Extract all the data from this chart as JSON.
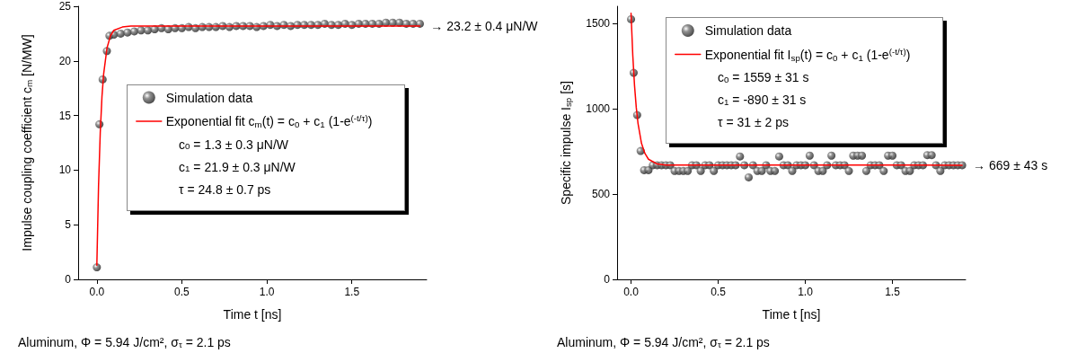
{
  "chart_data": [
    {
      "type": "scatter",
      "xlabel": "Time t [ns]",
      "ylabel": "Impulse coupling coefficient c$_{m}$ [N/MW]",
      "xlim": [
        -0.11,
        1.94
      ],
      "ylim": [
        0,
        25
      ],
      "xticks": [
        {
          "value": 0,
          "label": "0.0"
        },
        {
          "value": 0.5,
          "label": "0.5"
        },
        {
          "value": 1,
          "label": "1.0"
        },
        {
          "value": 1.5,
          "label": "1.5"
        }
      ],
      "yticks": [
        0,
        5,
        10,
        15,
        20,
        25
      ],
      "grid": false,
      "legend": "center",
      "marker": "circle",
      "annotations": [
        "c$_{0}$ = 1.3 ± 0.3 μN/W",
        "c$_{1}$ = 21.9 ± 0.3 μN/W",
        "τ = 24.8 ± 0.7 ps",
        {
          "text": "→ 23.2 ± 0.4 μN/W",
          "x": 1.91,
          "y": 23.2
        },
        "Aluminum, Φ = 5.94 J/cm², σ$_{τ}$ = 2.1 ps"
      ],
      "series": [
        {
          "name": "Simulation data",
          "type": "scatter",
          "color": "#1a1a1a",
          "x": [
            0,
            0.015,
            0.034,
            0.059,
            0.074,
            0.1,
            0.14,
            0.18,
            0.22,
            0.26,
            0.3,
            0.34,
            0.38,
            0.42,
            0.46,
            0.5,
            0.54,
            0.58,
            0.62,
            0.66,
            0.7,
            0.74,
            0.78,
            0.82,
            0.86,
            0.9,
            0.94,
            0.98,
            1.02,
            1.06,
            1.1,
            1.14,
            1.18,
            1.22,
            1.26,
            1.3,
            1.34,
            1.38,
            1.42,
            1.46,
            1.5,
            1.54,
            1.58,
            1.62,
            1.66,
            1.7,
            1.74,
            1.78,
            1.82,
            1.86,
            1.9
          ],
          "values": [
            1.1,
            14.2,
            18.3,
            20.9,
            22.3,
            22.4,
            22.5,
            22.6,
            22.7,
            22.8,
            22.8,
            22.9,
            23.0,
            22.9,
            23.0,
            23.0,
            23.1,
            23.0,
            23.1,
            23.1,
            23.1,
            23.2,
            23.1,
            23.2,
            23.2,
            23.2,
            23.1,
            23.2,
            23.3,
            23.2,
            23.3,
            23.2,
            23.3,
            23.3,
            23.3,
            23.3,
            23.4,
            23.3,
            23.3,
            23.4,
            23.3,
            23.4,
            23.4,
            23.4,
            23.4,
            23.5,
            23.5,
            23.5,
            23.4,
            23.4,
            23.4
          ]
        },
        {
          "name": "Exponential fit c$_{m}$(t) = c$_{0}$ + c$_{1}$ (1-e$^{(-t/τ)}$)",
          "type": "line",
          "color": "#ff0000",
          "marker": "none",
          "x": [
            0,
            0.01,
            0.02,
            0.03,
            0.04,
            0.06,
            0.08,
            0.1,
            0.15,
            0.2,
            1.9
          ],
          "values": [
            1.3,
            8.6,
            13.4,
            16.7,
            18.8,
            21.2,
            22.3,
            22.8,
            23.1,
            23.2,
            23.2
          ]
        }
      ]
    },
    {
      "type": "scatter",
      "xlabel": "Time t [ns]",
      "ylabel": "Specific impulse I$_{sp}$ [s]",
      "xlim": [
        -0.08,
        1.92
      ],
      "ylim": [
        0,
        1600
      ],
      "xticks": [
        {
          "value": 0,
          "label": "0.0"
        },
        {
          "value": 0.5,
          "label": "0.5"
        },
        {
          "value": 1,
          "label": "1.0"
        },
        {
          "value": 1.5,
          "label": "1.5"
        }
      ],
      "yticks": [
        0,
        500,
        1000,
        1500
      ],
      "grid": false,
      "legend": "top",
      "marker": "circle",
      "annotations": [
        "c$_{0}$ = 1559 ± 31 s",
        "c$_{1}$ = -890 ± 31 s",
        "τ = 31 ± 2 ps",
        {
          "text": "→ 669 ± 43 s",
          "x": 1.91,
          "y": 669
        },
        "Aluminum, Φ = 5.94 J/cm², σ$_{τ}$ = 2.1 ps"
      ],
      "series": [
        {
          "name": "Simulation data",
          "type": "scatter",
          "color": "#1a1a1a",
          "x": [
            0,
            0.015,
            0.035,
            0.055,
            0.075,
            0.1,
            0.125,
            0.15,
            0.175,
            0.2,
            0.225,
            0.25,
            0.275,
            0.3,
            0.325,
            0.35,
            0.375,
            0.4,
            0.425,
            0.45,
            0.475,
            0.5,
            0.525,
            0.55,
            0.575,
            0.6,
            0.625,
            0.65,
            0.675,
            0.7,
            0.725,
            0.75,
            0.775,
            0.8,
            0.825,
            0.85,
            0.875,
            0.9,
            0.925,
            0.95,
            0.975,
            1.0,
            1.025,
            1.05,
            1.075,
            1.1,
            1.125,
            1.15,
            1.175,
            1.2,
            1.225,
            1.25,
            1.275,
            1.3,
            1.325,
            1.35,
            1.375,
            1.4,
            1.425,
            1.45,
            1.475,
            1.5,
            1.525,
            1.55,
            1.575,
            1.6,
            1.625,
            1.65,
            1.675,
            1.7,
            1.725,
            1.75,
            1.775,
            1.8,
            1.825,
            1.85,
            1.875,
            1.9
          ],
          "values": [
            1524,
            1210,
            963,
            752,
            640,
            640,
            669,
            669,
            669,
            669,
            669,
            635,
            635,
            635,
            635,
            669,
            669,
            635,
            669,
            669,
            635,
            669,
            669,
            669,
            669,
            669,
            720,
            669,
            598,
            669,
            635,
            635,
            669,
            635,
            635,
            720,
            669,
            669,
            635,
            669,
            669,
            669,
            725,
            669,
            635,
            635,
            669,
            725,
            669,
            669,
            669,
            635,
            725,
            725,
            725,
            635,
            669,
            669,
            669,
            635,
            725,
            725,
            669,
            669,
            635,
            635,
            669,
            669,
            669,
            728,
            728,
            669,
            635,
            669,
            669,
            669,
            669,
            669
          ]
        },
        {
          "name": "Exponential fit I$_{sp}$(t) = c$_{0}$ + c$_{1}$ (1-e$^{(-t/τ)}$)",
          "type": "line",
          "color": "#ff0000",
          "marker": "none",
          "x": [
            0,
            0.01,
            0.02,
            0.03,
            0.04,
            0.06,
            0.08,
            0.1,
            0.15,
            0.2,
            1.9
          ],
          "values": [
            1559,
            1313,
            1136,
            1007,
            914,
            797,
            737,
            704,
            676,
            670,
            669
          ]
        }
      ]
    }
  ]
}
